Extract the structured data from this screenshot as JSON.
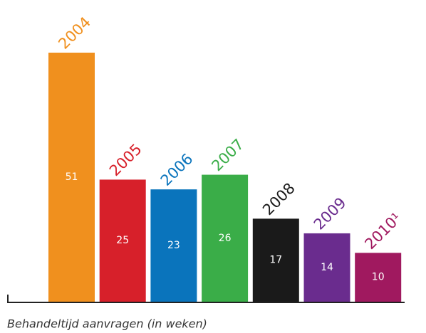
{
  "chart_data": {
    "type": "bar",
    "caption": "Behandeltijd aanvragen (in weken)",
    "categories": [
      "2004",
      "2005",
      "2006",
      "2007",
      "2008",
      "2009",
      "2010¹"
    ],
    "values": [
      51,
      25,
      23,
      26,
      17,
      14,
      10
    ],
    "colors": [
      "#f0901e",
      "#d7202a",
      "#0a74bc",
      "#3aad48",
      "#1a1a1a",
      "#6a2c8e",
      "#a0195f"
    ]
  }
}
